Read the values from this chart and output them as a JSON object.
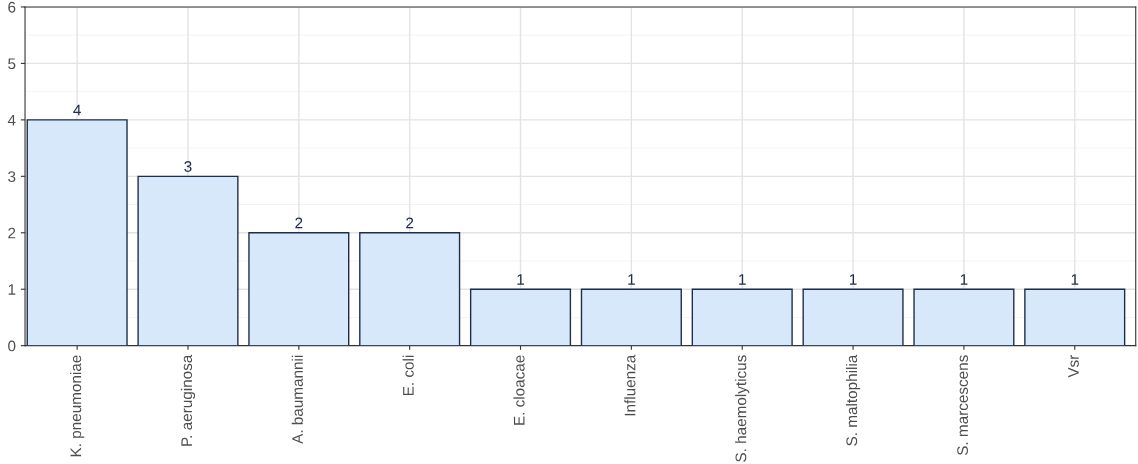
{
  "chart_data": {
    "type": "bar",
    "categories": [
      "K. pneumoniae",
      "P. aeruginosa",
      "A. baumannii",
      "E. coli",
      "E. cloacae",
      "Influenza",
      "S. haemolyticus",
      "S. maltophilia",
      "S. marcescens",
      "Vsr"
    ],
    "values": [
      4,
      3,
      2,
      2,
      1,
      1,
      1,
      1,
      1,
      1
    ],
    "color": "#d6e8fa",
    "ylim": [
      0,
      6
    ],
    "yticks": [
      0,
      1,
      2,
      3,
      4,
      5,
      6
    ],
    "grid": true,
    "data_labels": true
  }
}
